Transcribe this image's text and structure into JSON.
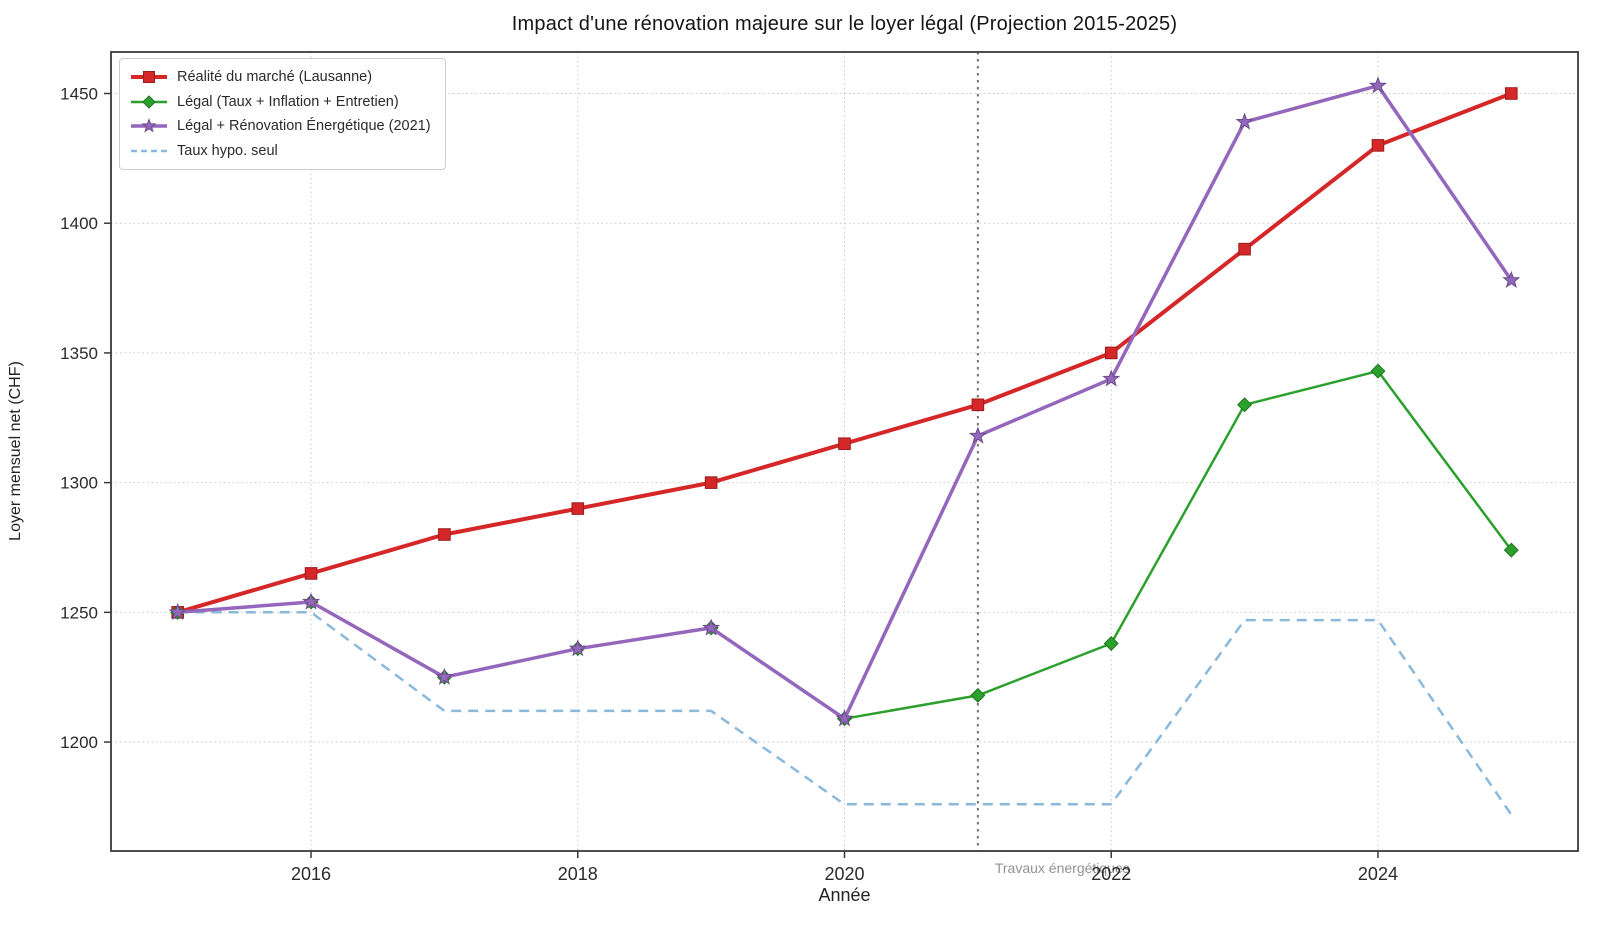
{
  "chart_data": {
    "type": "line",
    "title": "Impact d'une rénovation majeure sur le loyer légal (Projection 2015-2025)",
    "xlabel": "Année",
    "ylabel": "Loyer mensuel net (CHF)",
    "x": [
      2015,
      2016,
      2017,
      2018,
      2019,
      2020,
      2021,
      2022,
      2023,
      2024,
      2025
    ],
    "series": [
      {
        "name": "Réalité du marché (Lausanne)",
        "color": "#d62728",
        "marker": "square",
        "line_width": 4,
        "dash": null,
        "values": [
          1250,
          1265,
          1280,
          1290,
          1300,
          1315,
          1330,
          1350,
          1390,
          1430,
          1450
        ]
      },
      {
        "name": "Légal (Taux + Inflation + Entretien)",
        "color": "#2ca02c",
        "marker": "diamond",
        "line_width": 2.5,
        "dash": null,
        "values": [
          1250,
          1254,
          1225,
          1236,
          1244,
          1209,
          1218,
          1238,
          1330,
          1343,
          1274
        ]
      },
      {
        "name": "Légal + Rénovation Énergétique (2021)",
        "color": "#9467bd",
        "marker": "star",
        "line_width": 3.5,
        "dash": null,
        "values": [
          1250,
          1254,
          1225,
          1236,
          1244,
          1209,
          1318,
          1340,
          1439,
          1453,
          1378
        ]
      },
      {
        "name": "Taux hypo. seul",
        "color": "#8ab9dc",
        "marker": "none",
        "line_width": 2.5,
        "dash": "10 7",
        "values": [
          1250,
          1250,
          1212,
          1212,
          1212,
          1176,
          1176,
          1176,
          1247,
          1247,
          1172
        ]
      }
    ],
    "xticks": [
      2016,
      2018,
      2020,
      2022,
      2024
    ],
    "yticks": [
      1200,
      1250,
      1300,
      1350,
      1400,
      1450
    ],
    "xlim": [
      2014.5,
      2025.5
    ],
    "ylim": [
      1158,
      1466
    ],
    "grid": true,
    "legend_position": "upper-left",
    "annotations": {
      "event_line": {
        "x": 2021,
        "label": "Travaux énergétiques",
        "line_color": "#737373",
        "label_color": "#919191"
      }
    }
  }
}
